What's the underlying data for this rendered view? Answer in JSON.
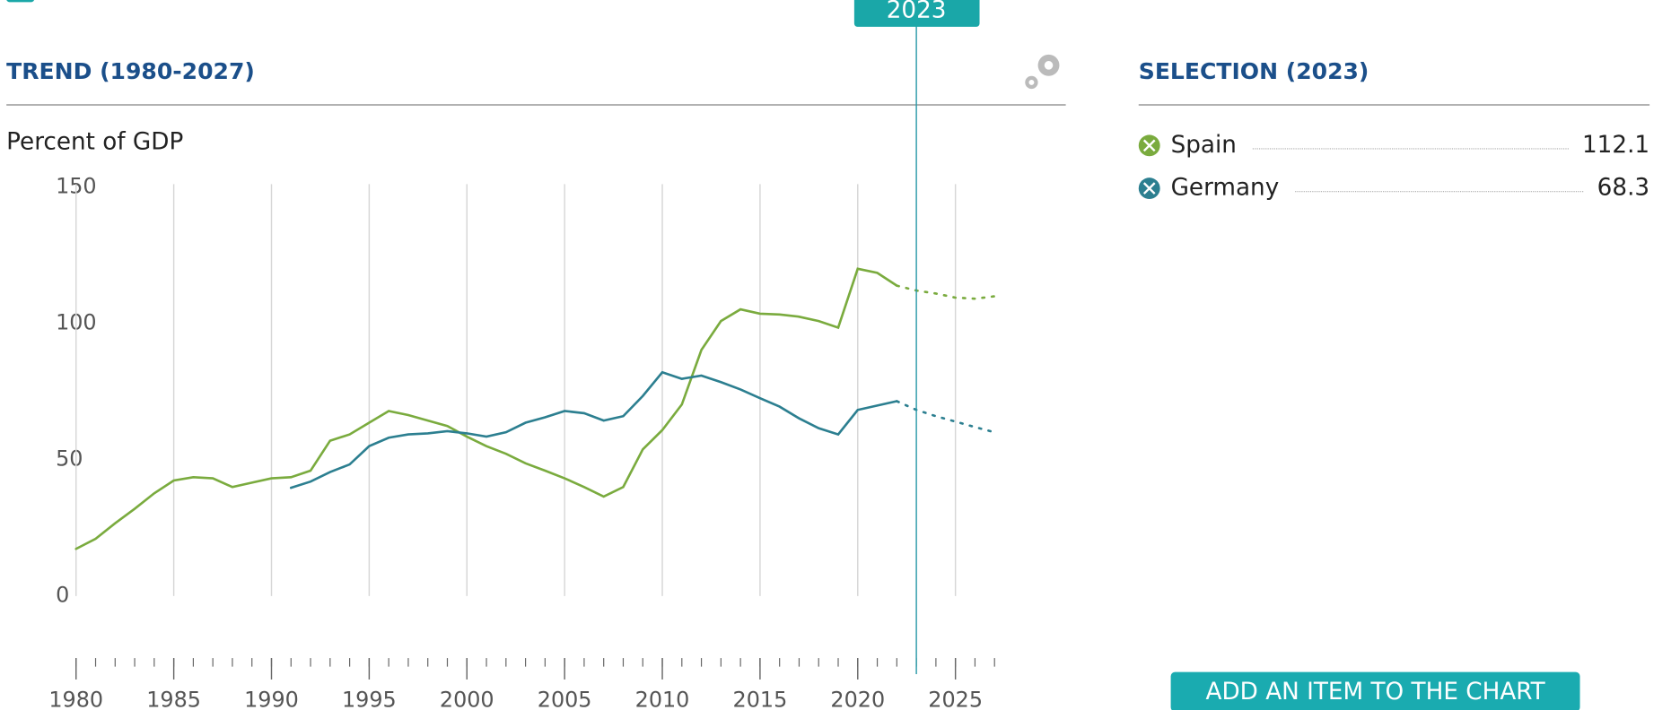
{
  "chart_data": {
    "type": "line",
    "title": "TREND (1980-2027)",
    "y_label": "Percent of GDP",
    "x": [
      1980,
      1981,
      1982,
      1983,
      1984,
      1985,
      1986,
      1987,
      1988,
      1989,
      1990,
      1991,
      1992,
      1993,
      1994,
      1995,
      1996,
      1997,
      1998,
      1999,
      2000,
      2001,
      2002,
      2003,
      2004,
      2005,
      2006,
      2007,
      2008,
      2009,
      2010,
      2011,
      2012,
      2013,
      2014,
      2015,
      2016,
      2017,
      2018,
      2019,
      2020,
      2021,
      2022,
      2023,
      2024,
      2025,
      2026,
      2027
    ],
    "xlim": [
      1980,
      2027
    ],
    "xticks": [
      1980,
      1985,
      1990,
      1995,
      2000,
      2005,
      2010,
      2015,
      2020,
      2025
    ],
    "ylim": [
      0,
      150
    ],
    "yticks": [
      0,
      50,
      100,
      150
    ],
    "grid": "x",
    "projection_from": 2022,
    "selected_index": 43,
    "selection_title": "SELECTION (2023)",
    "series": [
      {
        "name": "Spain",
        "color": "#7aab3e",
        "values": [
          17.3,
          21,
          26.7,
          32,
          37.7,
          42.4,
          43.6,
          43.2,
          40,
          41.6,
          43.2,
          43.6,
          46,
          57,
          59.3,
          63.6,
          67.9,
          66.4,
          64.4,
          62.4,
          58.5,
          55,
          52.2,
          48.7,
          46,
          43.2,
          40,
          36.5,
          40,
          53.8,
          60.9,
          70.3,
          90.3,
          100.9,
          105.2,
          103.6,
          103.3,
          102.5,
          100.9,
          98.5,
          120.1,
          118.6,
          113.9,
          112.1,
          111,
          109.5,
          109.1,
          110
        ]
      },
      {
        "name": "Germany",
        "color": "#2c7f90",
        "values": [
          null,
          null,
          null,
          null,
          null,
          null,
          null,
          null,
          null,
          null,
          null,
          39.7,
          42,
          45.5,
          48.3,
          55,
          58.1,
          59.3,
          59.7,
          60.5,
          59.7,
          58.5,
          60.1,
          63.6,
          65.6,
          67.9,
          67.1,
          64.4,
          66,
          73.4,
          82.1,
          79.7,
          80.9,
          78.5,
          75.8,
          72.6,
          69.5,
          65.2,
          61.6,
          59.3,
          68.3,
          69.9,
          71.5,
          68.3,
          66,
          64,
          62,
          60.1
        ]
      }
    ],
    "button": "ADD AN ITEM TO THE CHART"
  }
}
